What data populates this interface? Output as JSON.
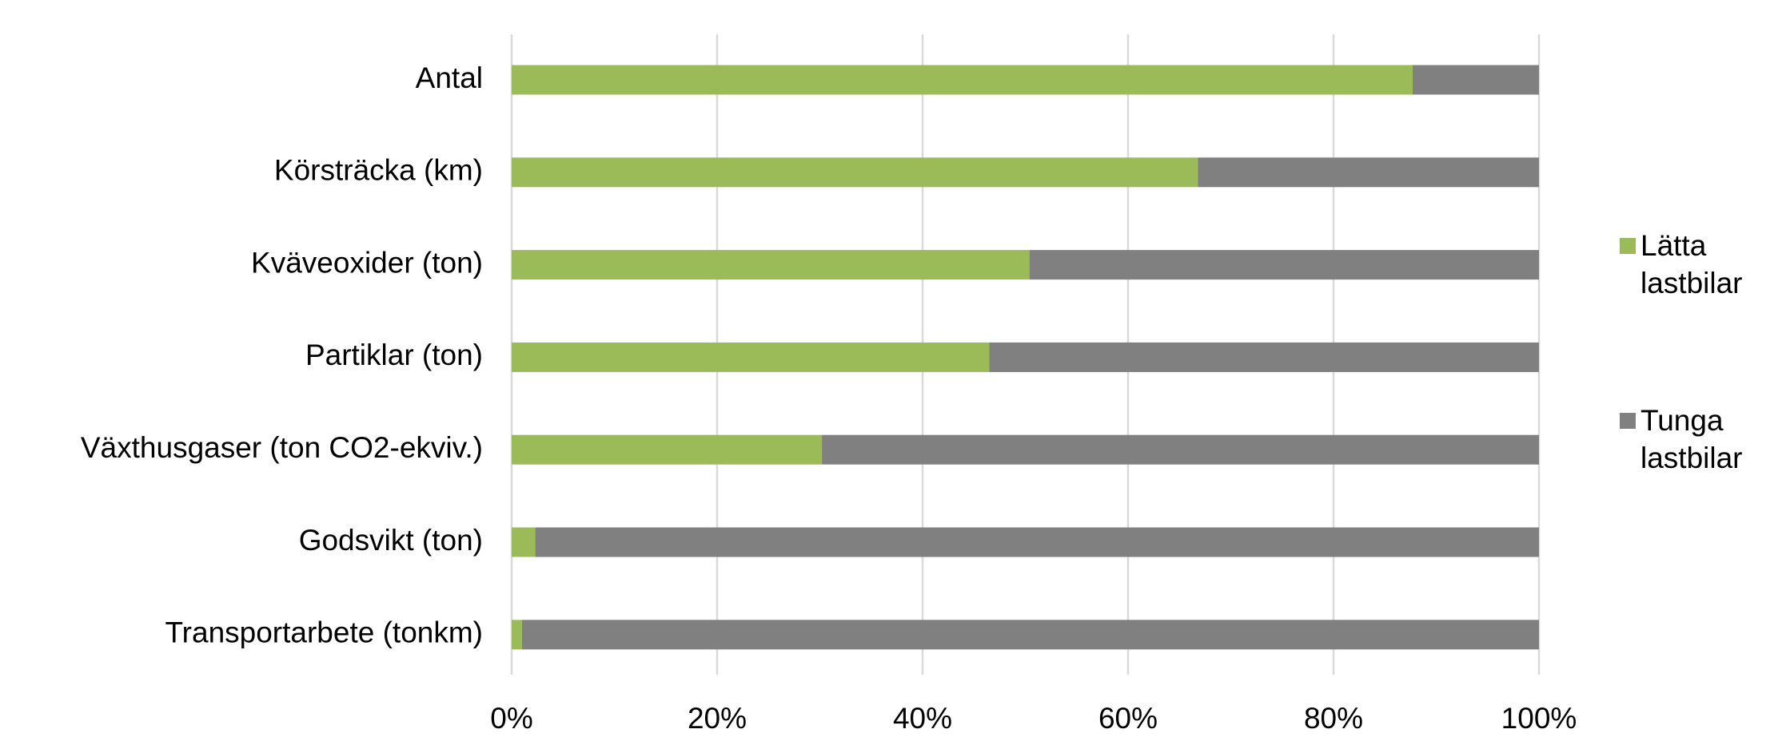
{
  "chart_data": {
    "type": "stacked-bar-horizontal",
    "categories": [
      "Antal",
      "Körsträcka (km)",
      "Kväveoxider (ton)",
      "Partiklar (ton)",
      "Växthusgaser (ton CO2-ekviv.)",
      "Godsvikt (ton)",
      "Transportarbete (tonkm)"
    ],
    "series": [
      {
        "name": "Lätta lastbilar",
        "color": "#9bbb59",
        "values": [
          87.7,
          66.8,
          50.4,
          46.5,
          30.2,
          2.3,
          1.0
        ]
      },
      {
        "name": "Tunga lastbilar",
        "color": "#808080",
        "values": [
          12.3,
          33.2,
          49.6,
          53.5,
          69.8,
          97.7,
          99.0
        ]
      }
    ],
    "xlim": [
      0,
      100
    ],
    "xticks": [
      {
        "value": 0,
        "label": "0%"
      },
      {
        "value": 20,
        "label": "20%"
      },
      {
        "value": 40,
        "label": "40%"
      },
      {
        "value": 60,
        "label": "60%"
      },
      {
        "value": 80,
        "label": "80%"
      },
      {
        "value": 100,
        "label": "100%"
      }
    ],
    "grid": true,
    "legend": "right"
  }
}
